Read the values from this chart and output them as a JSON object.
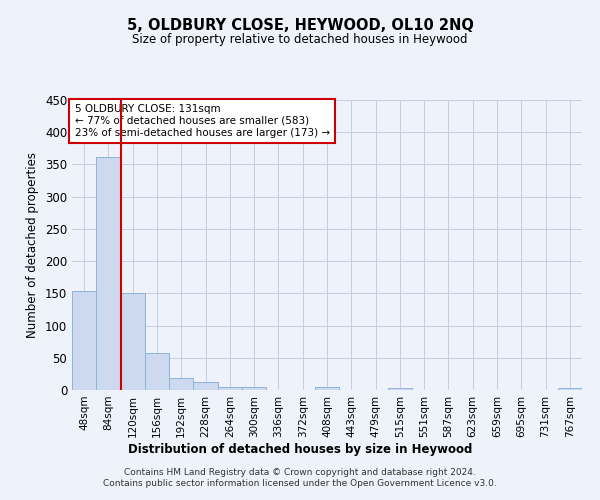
{
  "title": "5, OLDBURY CLOSE, HEYWOOD, OL10 2NQ",
  "subtitle": "Size of property relative to detached houses in Heywood",
  "xlabel": "Distribution of detached houses by size in Heywood",
  "ylabel": "Number of detached properties",
  "bin_labels": [
    "48sqm",
    "84sqm",
    "120sqm",
    "156sqm",
    "192sqm",
    "228sqm",
    "264sqm",
    "300sqm",
    "336sqm",
    "372sqm",
    "408sqm",
    "443sqm",
    "479sqm",
    "515sqm",
    "551sqm",
    "587sqm",
    "623sqm",
    "659sqm",
    "695sqm",
    "731sqm",
    "767sqm"
  ],
  "bar_heights": [
    153,
    362,
    150,
    58,
    18,
    12,
    5,
    5,
    0,
    0,
    5,
    0,
    0,
    3,
    0,
    0,
    0,
    0,
    0,
    0,
    3
  ],
  "bar_color": "#ccd9ee",
  "bar_edgecolor": "#8fb4d9",
  "vline_x_index": 1.5,
  "vline_color": "#cc0000",
  "annotation_text": "5 OLDBURY CLOSE: 131sqm\n← 77% of detached houses are smaller (583)\n23% of semi-detached houses are larger (173) →",
  "annotation_box_edgecolor": "#cc0000",
  "ylim": [
    0,
    450
  ],
  "yticks": [
    0,
    50,
    100,
    150,
    200,
    250,
    300,
    350,
    400,
    450
  ],
  "footer": "Contains HM Land Registry data © Crown copyright and database right 2024.\nContains public sector information licensed under the Open Government Licence v3.0.",
  "bg_color": "#eef2fa",
  "plot_bg_color": "#eef2fa",
  "grid_color": "#c5cde0"
}
